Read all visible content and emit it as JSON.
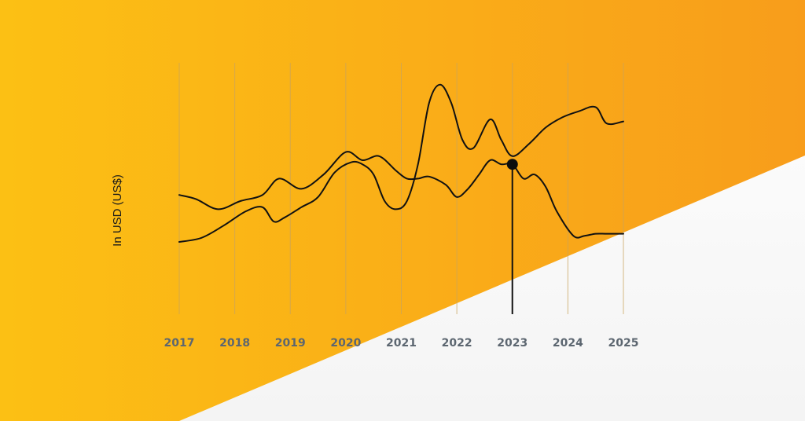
{
  "chart_data": {
    "type": "line",
    "title": "",
    "xlabel": "",
    "ylabel": "In USD (US$)",
    "categories": [
      "2017",
      "2018",
      "2019",
      "2020",
      "2021",
      "2022",
      "2023",
      "2024",
      "2025"
    ],
    "grid": true,
    "legend": "none",
    "ylim": [
      0,
      100
    ],
    "series": [
      {
        "x": [
          2017,
          2017.3,
          2017.7,
          2018.1,
          2018.5,
          2018.8,
          2019.2,
          2019.6,
          2020.0,
          2020.3,
          2020.6,
          2020.9,
          2021.1,
          2021.3,
          2021.5,
          2021.8,
          2022.0,
          2022.2,
          2022.4,
          2022.6,
          2022.8,
          2023.0,
          2023.2,
          2023.4,
          2023.6,
          2023.8,
          2024.1,
          2024.3,
          2024.5,
          2024.7,
          2025.0
        ],
        "values": [
          43,
          41,
          36,
          40,
          43,
          51,
          46,
          53,
          64,
          60,
          62,
          55,
          51,
          51,
          52,
          48,
          42,
          46,
          53,
          60,
          58,
          58,
          51,
          53,
          47,
          35,
          23,
          23,
          24,
          24,
          24
        ]
      },
      {
        "x": [
          2017,
          2017.4,
          2017.8,
          2018.2,
          2018.5,
          2018.7,
          2018.9,
          2019.2,
          2019.5,
          2019.8,
          2020.1,
          2020.3,
          2020.5,
          2020.7,
          2020.9,
          2021.1,
          2021.3,
          2021.5,
          2021.7,
          2021.9,
          2022.1,
          2022.3,
          2022.6,
          2022.8,
          2023.0,
          2023.3,
          2023.6,
          2023.9,
          2024.2,
          2024.5,
          2024.7,
          2025.0
        ],
        "values": [
          20,
          22,
          28,
          35,
          37,
          30,
          32,
          37,
          42,
          54,
          59,
          58,
          53,
          40,
          36,
          40,
          58,
          88,
          97,
          88,
          70,
          66,
          80,
          70,
          62,
          68,
          76,
          81,
          84,
          86,
          78,
          79
        ]
      }
    ],
    "highlight": {
      "x": 2023,
      "value": 58
    }
  }
}
